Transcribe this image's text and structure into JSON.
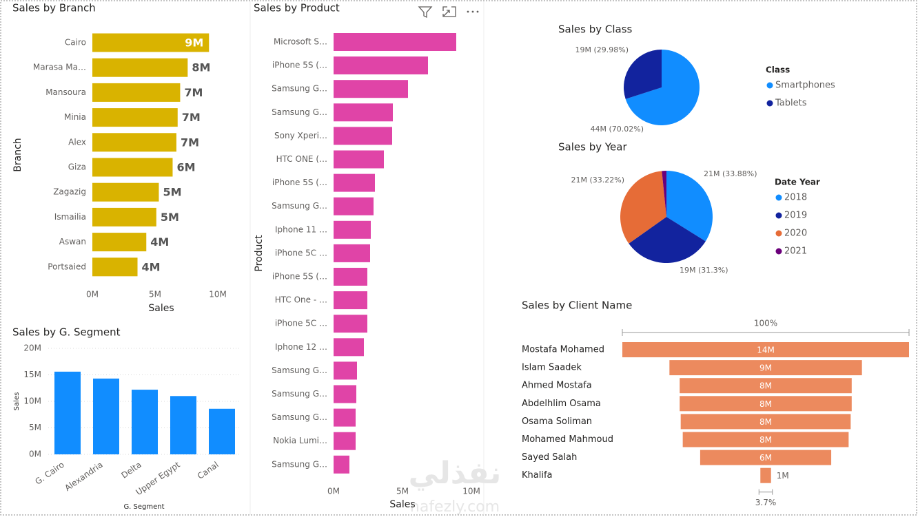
{
  "chart_data": [
    {
      "type": "bar",
      "horizontal": true,
      "title": "Sales by Branch",
      "categories": [
        "Cairo",
        "Marasa Ma…",
        "Mansoura",
        "Minia",
        "Alex",
        "Giza",
        "Zagazig",
        "Ismailia",
        "Aswan",
        "Portsaied"
      ],
      "values": [
        9300000,
        7600000,
        7000000,
        6800000,
        6700000,
        6400000,
        5300000,
        5100000,
        4300000,
        3600000
      ],
      "value_labels": [
        "9M",
        "8M",
        "7M",
        "7M",
        "7M",
        "6M",
        "5M",
        "5M",
        "4M",
        "4M"
      ],
      "color": "#D9B300",
      "xlim": [
        0,
        10000000
      ],
      "xticks": [
        {
          "value": 0,
          "label": "0M"
        },
        {
          "value": 5000000,
          "label": "5M"
        },
        {
          "value": 10000000,
          "label": "10M"
        }
      ],
      "x_label": "Sales",
      "y_label": "Branch"
    },
    {
      "type": "bar",
      "horizontal": false,
      "title": "Sales by G. Segment",
      "categories": [
        "G. Cairo",
        "Alexandria",
        "Delta",
        "Upper Egypt",
        "Canal"
      ],
      "values": [
        15600000,
        14300000,
        12200000,
        11000000,
        8600000
      ],
      "color": "#118DFF",
      "ylim": [
        0,
        20000000
      ],
      "yticks": [
        {
          "value": 0,
          "label": "0M"
        },
        {
          "value": 5000000,
          "label": "5M"
        },
        {
          "value": 10000000,
          "label": "10M"
        },
        {
          "value": 15000000,
          "label": "15M"
        },
        {
          "value": 20000000,
          "label": "20M"
        }
      ],
      "grid": true,
      "x_label": "G. Segment",
      "y_label": "Sales"
    },
    {
      "type": "bar",
      "horizontal": true,
      "title": "Sales by Product",
      "categories": [
        "Microsoft S…",
        "iPhone 5S (…",
        "Samsung G…",
        "Samsung G…",
        "Sony Xperi…",
        "HTC ONE (…",
        "iPhone 5S (…",
        "Samsung G…",
        "Iphone 11 …",
        "iPhone 5C …",
        "iPhone 5S (…",
        "HTC One - …",
        "iPhone 5C …",
        "Iphone 12 …",
        "Samsung G…",
        "Samsung G…",
        "Samsung G…",
        "Nokia Lumi…",
        "Samsung G…"
      ],
      "values": [
        8900000,
        6850000,
        5400000,
        4300000,
        4250000,
        3650000,
        3000000,
        2900000,
        2700000,
        2650000,
        2450000,
        2450000,
        2450000,
        2200000,
        1700000,
        1650000,
        1600000,
        1600000,
        1150000
      ],
      "color": "#E044A7",
      "xlim": [
        0,
        10000000
      ],
      "xticks": [
        {
          "value": 0,
          "label": "0M"
        },
        {
          "value": 5000000,
          "label": "5M"
        },
        {
          "value": 10000000,
          "label": "10M"
        }
      ],
      "x_label": "Sales",
      "y_label": "Product"
    },
    {
      "type": "pie",
      "title": "Sales by Class",
      "legend_title": "Class",
      "categories": [
        "Smartphones",
        "Tablets"
      ],
      "values": [
        70.02,
        29.98
      ],
      "value_labels": [
        "44M (70.02%)",
        "19M (29.98%)"
      ],
      "colors": [
        "#118DFF",
        "#12239E"
      ]
    },
    {
      "type": "pie",
      "title": "Sales by Year",
      "legend_title": "Date Year",
      "categories": [
        "2018",
        "2019",
        "2020",
        "2021"
      ],
      "values": [
        33.88,
        31.3,
        33.22,
        1.6
      ],
      "value_labels": [
        "21M (33.88%)",
        "19M (31.3%)",
        "21M (33.22%)",
        null
      ],
      "colors": [
        "#118DFF",
        "#12239E",
        "#E66C37",
        "#6B007B"
      ]
    },
    {
      "type": "funnel",
      "title": "Sales by Client Name",
      "categories": [
        "Mostafa Mohamed",
        "Islam Saadek",
        "Ahmed Mostafa",
        "Abdelhlim Osama",
        "Osama Soliman",
        "Mohamed Mahmoud",
        "Sayed Salah",
        "Khalifa"
      ],
      "values": [
        14000000,
        9400000,
        8400000,
        8400000,
        8300000,
        8100000,
        6400000,
        520000
      ],
      "value_labels": [
        "14M",
        "9M",
        "8M",
        "8M",
        "8M",
        "8M",
        "6M",
        "1M"
      ],
      "color": "#EC8A5E",
      "top_label": "100%",
      "bottom_label": "3.7%"
    }
  ],
  "watermark": {
    "arabic": "نفذلي",
    "latin": "nafezly.com"
  }
}
